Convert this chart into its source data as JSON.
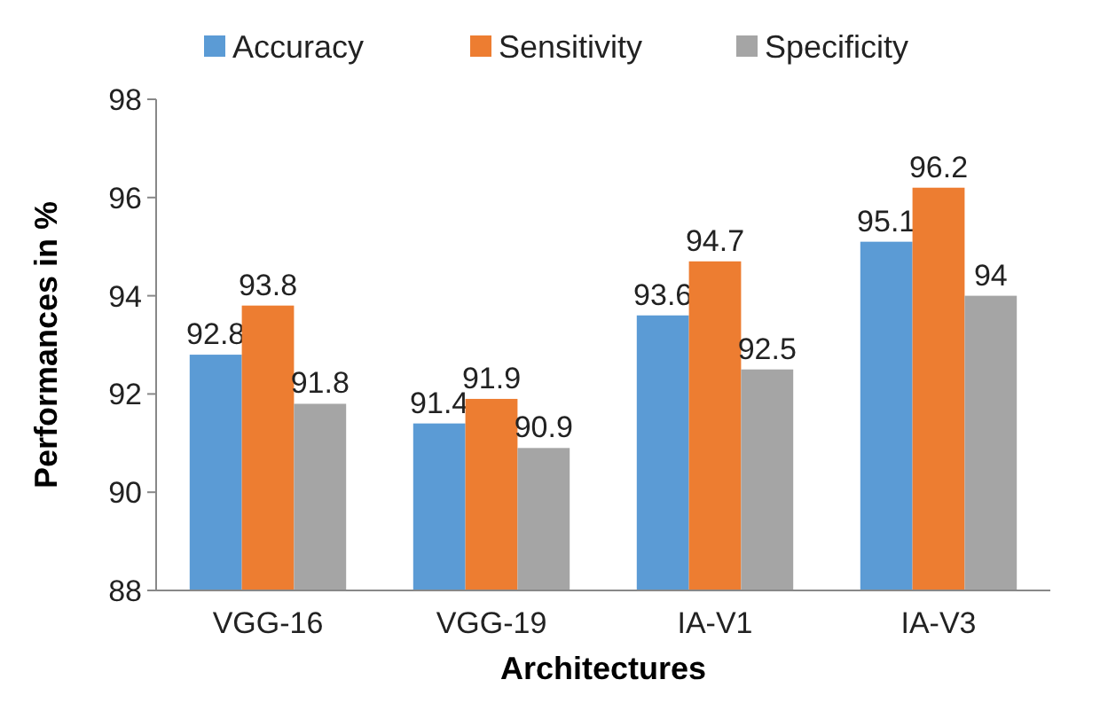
{
  "chart_data": {
    "type": "bar",
    "xlabel": "Architectures",
    "ylabel": "Performances in %",
    "categories": [
      "VGG-16",
      "VGG-19",
      "IA-V1",
      "IA-V3"
    ],
    "series": [
      {
        "name": "Accuracy",
        "color": "#5b9bd5",
        "values": [
          92.8,
          91.4,
          93.6,
          95.1
        ]
      },
      {
        "name": "Sensitivity",
        "color": "#ed7d31",
        "values": [
          93.8,
          91.9,
          94.7,
          96.2
        ]
      },
      {
        "name": "Specificity",
        "color": "#a5a5a5",
        "values": [
          91.8,
          90.9,
          92.5,
          94
        ]
      }
    ],
    "ylim": [
      88,
      98
    ],
    "yticks": [
      88,
      90,
      92,
      94,
      96,
      98
    ],
    "grid": false,
    "legend": "top",
    "data_labels": true
  }
}
